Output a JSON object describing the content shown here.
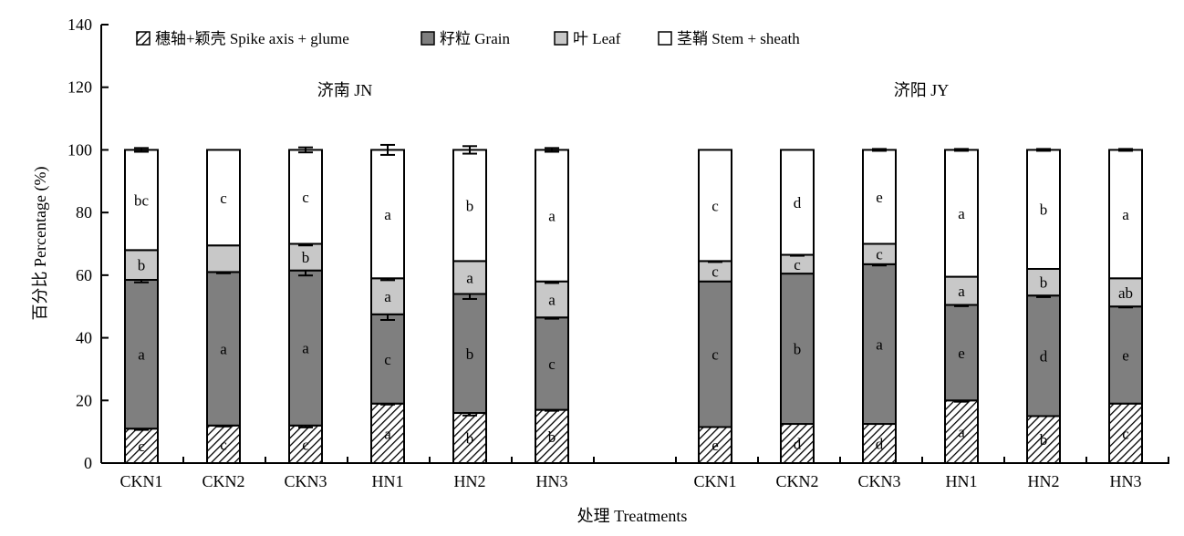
{
  "chart_data": {
    "type": "bar",
    "stacked": true,
    "title": "",
    "xlabel": "处理 Treatments",
    "ylabel": "百分比 Percentage (%)",
    "ylim": [
      0,
      140
    ],
    "yticks": [
      0,
      20,
      40,
      60,
      80,
      100,
      120,
      140
    ],
    "grid": false,
    "legend_position": "top",
    "panels": [
      {
        "title": "济南 JN",
        "categories": [
          "CKN1",
          "CKN2",
          "CKN3",
          "HN1",
          "HN2",
          "HN3"
        ],
        "series": [
          {
            "name": "穗轴+颖壳 Spike axis + glume",
            "values": [
              11,
              12,
              12,
              19,
              16,
              17
            ],
            "errors": [
              0.4,
              0.3,
              0.6,
              0.3,
              0.8,
              0.3
            ],
            "letters": [
              "c",
              "c",
              "c",
              "a",
              "b",
              "b"
            ]
          },
          {
            "name": "籽粒 Grain",
            "values": [
              47.5,
              49,
              49.5,
              28.5,
              38,
              29.5
            ],
            "errors": [
              0.8,
              0.4,
              1.6,
              1.8,
              1.6,
              0.4
            ],
            "letters": [
              "a",
              "a",
              "a",
              "c",
              "b",
              "c"
            ]
          },
          {
            "name": "叶 Leaf",
            "values": [
              9.5,
              8.5,
              8.5,
              11.5,
              10.5,
              11.5
            ],
            "errors": [
              0,
              0,
              0.5,
              0.6,
              0,
              0.5
            ],
            "letters": [
              "b",
              "",
              "b",
              "a",
              "a",
              "a"
            ]
          },
          {
            "name": "茎鞘 Stem + sheath",
            "values": [
              32,
              30.5,
              30,
              41,
              35.5,
              42
            ],
            "errors": [
              0.6,
              0,
              0.8,
              1.6,
              1.2,
              0.6
            ],
            "letters": [
              "bc",
              "c",
              "c",
              "a",
              "b",
              "a"
            ]
          }
        ]
      },
      {
        "title": "济阳 JY",
        "categories": [
          "CKN1",
          "CKN2",
          "CKN3",
          "HN1",
          "HN2",
          "HN3"
        ],
        "series": [
          {
            "name": "穗轴+颖壳 Spike axis + glume",
            "values": [
              11.5,
              12.5,
              12.5,
              20,
              15,
              19
            ],
            "errors": [
              0,
              0,
              0,
              0.4,
              0,
              0
            ],
            "letters": [
              "e",
              "d",
              "d",
              "a",
              "b",
              "c"
            ]
          },
          {
            "name": "籽粒 Grain",
            "values": [
              46.5,
              48,
              51,
              30.5,
              38.5,
              31
            ],
            "errors": [
              0,
              0,
              0.4,
              0.4,
              0.5,
              0.3
            ],
            "letters": [
              "c",
              "b",
              "a",
              "e",
              "d",
              "e"
            ]
          },
          {
            "name": "叶 Leaf",
            "values": [
              6.5,
              6,
              6.5,
              9,
              8.5,
              9
            ],
            "errors": [
              0.3,
              0.3,
              0,
              0,
              0,
              0
            ],
            "letters": [
              "c",
              "c",
              "c",
              "a",
              "b",
              "ab"
            ]
          },
          {
            "name": "茎鞘 Stem + sheath",
            "values": [
              35.5,
              33.5,
              30,
              40.5,
              38,
              41
            ],
            "errors": [
              0,
              0,
              0.3,
              0.3,
              0.3,
              0.3
            ],
            "letters": [
              "c",
              "d",
              "e",
              "a",
              "b",
              "a"
            ]
          }
        ]
      }
    ]
  }
}
